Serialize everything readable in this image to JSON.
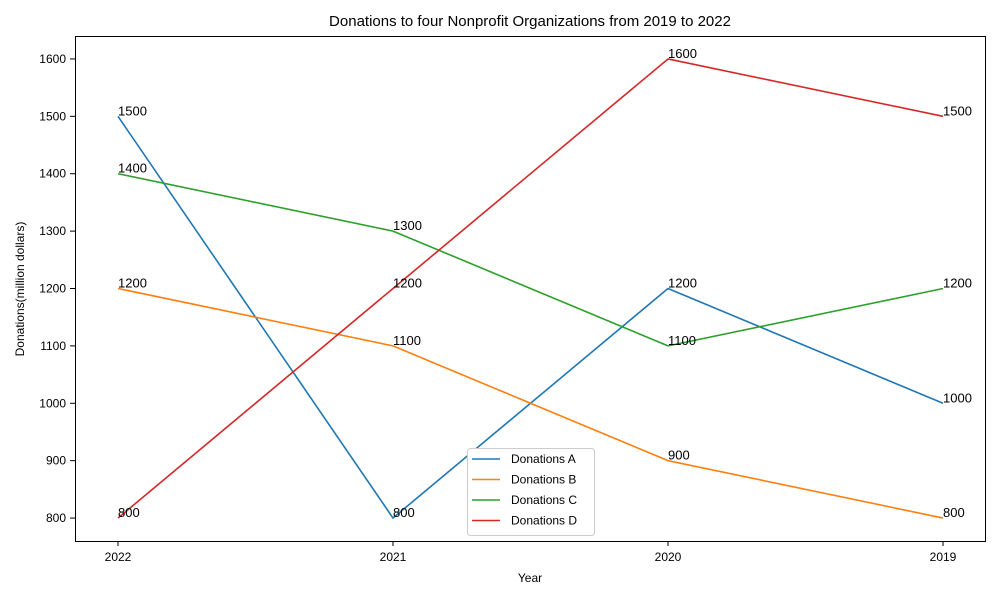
{
  "chart_data": {
    "type": "line",
    "title": "Donations to four Nonprofit Organizations from 2019 to 2022",
    "xlabel": "Year",
    "ylabel": "Donations(million dollars)",
    "categories": [
      "2022",
      "2021",
      "2020",
      "2019"
    ],
    "ylim": [
      760,
      1640
    ],
    "yticks": [
      800,
      900,
      1000,
      1100,
      1200,
      1300,
      1400,
      1500,
      1600
    ],
    "grid": false,
    "legend_position": "bottom-center",
    "series": [
      {
        "name": "Donations A",
        "color": "#1f77b4",
        "values": [
          1500,
          800,
          1200,
          1000
        ]
      },
      {
        "name": "Donations B",
        "color": "#ff7f0e",
        "values": [
          1200,
          1100,
          900,
          800
        ]
      },
      {
        "name": "Donations C",
        "color": "#2ca02c",
        "values": [
          1400,
          1300,
          1100,
          1200
        ]
      },
      {
        "name": "Donations D",
        "color": "#d62728",
        "values": [
          800,
          1200,
          1600,
          1500
        ]
      }
    ]
  }
}
